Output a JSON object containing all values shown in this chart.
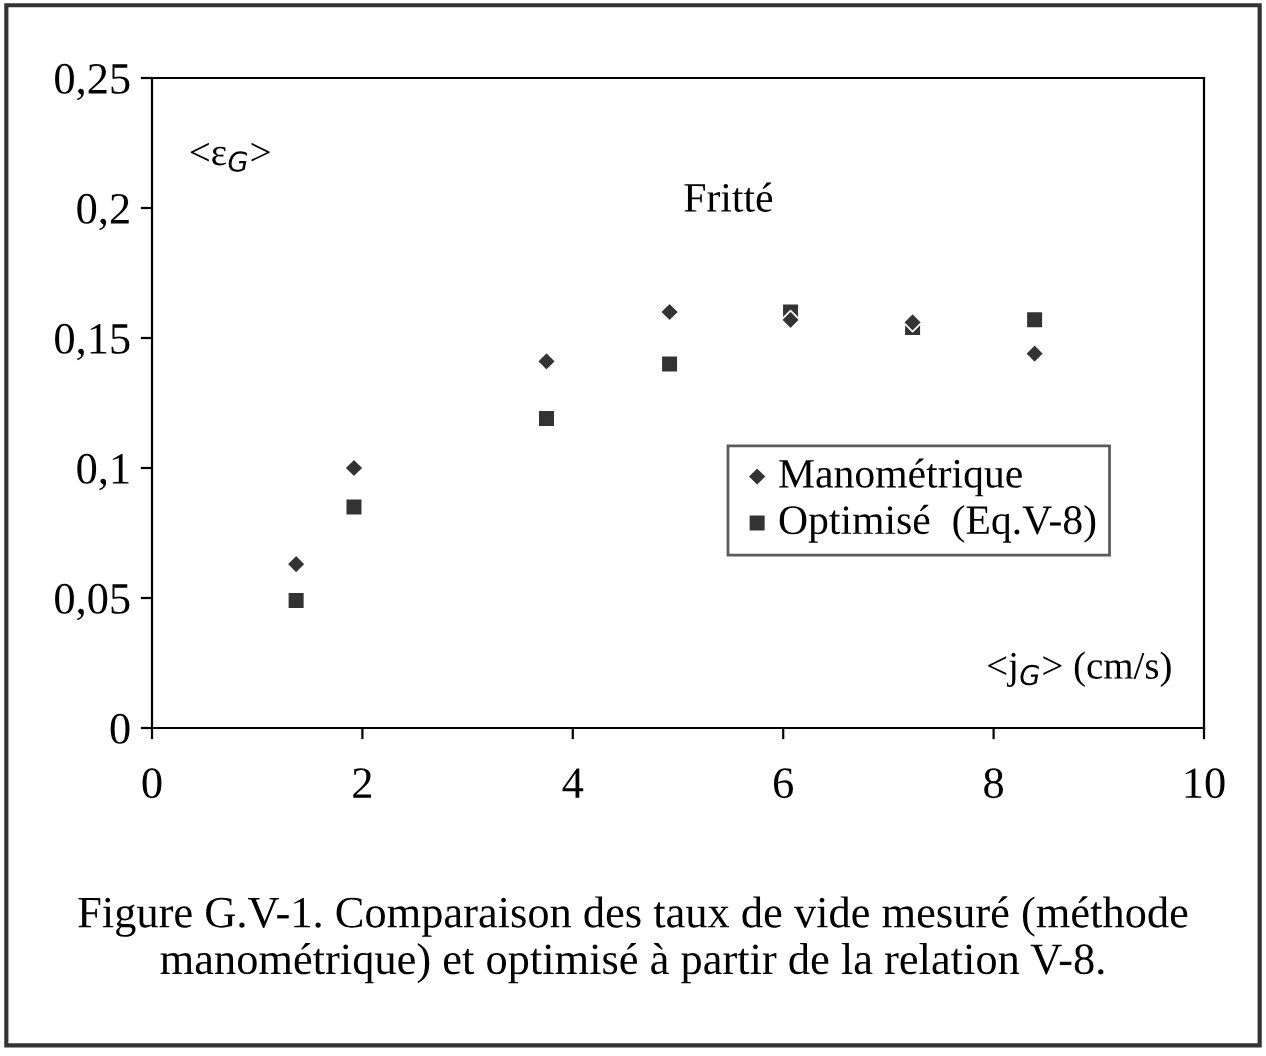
{
  "chart_data": {
    "type": "scatter",
    "xlabel": "<j$_{G}$> (cm/s)",
    "ylabel": "<ε$_{G}$>",
    "annotations": [
      "Fritté",
      "Figure G.V-1. Comparaison des taux de vide mesuré (méthode manométrique) et optimisé à partir de la relation V-8."
    ],
    "series": [
      {
        "name": "Manométrique",
        "color": "#333333",
        "marker": "diamond",
        "x": [
          1.37,
          1.92,
          3.75,
          4.92,
          6.07,
          7.23,
          8.39
        ],
        "values": [
          0.063,
          0.1,
          0.141,
          0.16,
          0.157,
          0.156,
          0.144
        ]
      },
      {
        "name": "Optimisé  (Eq.V-8)",
        "color": "#333333",
        "marker": "square",
        "x": [
          1.37,
          1.92,
          3.75,
          4.92,
          6.07,
          7.23,
          8.39
        ],
        "values": [
          0.049,
          0.085,
          0.119,
          0.14,
          0.16,
          0.154,
          0.157
        ]
      }
    ],
    "xlim": [
      0,
      10
    ],
    "xticks": [
      0,
      2,
      4,
      6,
      8,
      10
    ],
    "ylim": [
      0,
      0.25
    ],
    "yticks": [
      {
        "value": 0,
        "label": "0"
      },
      {
        "value": 0.05,
        "label": "0,05"
      },
      {
        "value": 0.1,
        "label": "0,1"
      },
      {
        "value": 0.15,
        "label": "0,15"
      },
      {
        "value": 0.2,
        "label": "0,2"
      },
      {
        "value": 0.25,
        "label": "0,25"
      }
    ],
    "grid": false,
    "legend": "right"
  }
}
